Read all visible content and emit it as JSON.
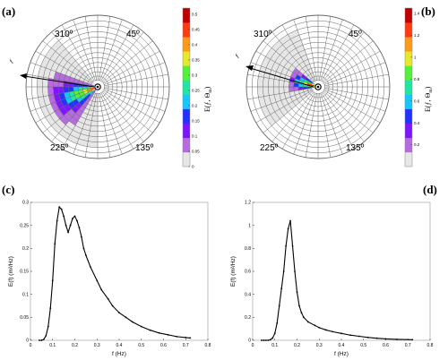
{
  "panel_labels": {
    "a": "(a)",
    "b": "(b)",
    "c": "(c)",
    "d": "(d)"
  },
  "colors": {
    "line": "#000000",
    "grid": "#555555",
    "colormap": [
      "#e6e6e6",
      "#b66be0",
      "#7d16ff",
      "#2233ff",
      "#12c8ff",
      "#1fe6a0",
      "#55f03a",
      "#e8e82a",
      "#ff9a18",
      "#ff3a10",
      "#c00000"
    ]
  },
  "chart_data": [
    {
      "type": "heatmap",
      "id": "a",
      "direction_labels": [
        "310º",
        "45º",
        "225º",
        "135º"
      ],
      "heading_label": "ƒ",
      "colorbar": {
        "title": "E(ƒ, Θ",
        "title_sub": "m",
        "title_close": ")",
        "ticks": [
          "0",
          "0.05",
          "0.1",
          "0.15",
          "0.2",
          "0.25",
          "0.3",
          "0.35",
          "0.4",
          "0.45",
          "0.5"
        ],
        "range": [
          0,
          0.52
        ]
      }
    },
    {
      "type": "heatmap",
      "id": "b",
      "direction_labels": [
        "310º",
        "45º",
        "225º",
        "135º"
      ],
      "heading_label": "ƒ",
      "colorbar": {
        "title": "E(ƒ, Θ",
        "title_sub": "m",
        "title_close": ")",
        "ticks": [
          "0.2",
          "0.4",
          "0.6",
          "0.8",
          "1",
          "1.2",
          "1.4"
        ],
        "range": [
          0,
          1.45
        ]
      }
    },
    {
      "type": "line",
      "id": "c",
      "xlabel": "f (Hz)",
      "ylabel": "E(f) (m²/Hz)",
      "xlim": [
        0,
        0.8
      ],
      "ylim": [
        0,
        0.3
      ],
      "xticks": [
        "0",
        "0.1",
        "0.2",
        "0.3",
        "0.4",
        "0.5",
        "0.6",
        "0.7",
        "0.8"
      ],
      "yticks": [
        "0",
        "0.05",
        "0.1",
        "0.15",
        "0.2",
        "0.25",
        "0.3"
      ],
      "x": [
        0.04,
        0.05,
        0.06,
        0.07,
        0.08,
        0.09,
        0.1,
        0.11,
        0.12,
        0.13,
        0.14,
        0.15,
        0.16,
        0.17,
        0.18,
        0.19,
        0.2,
        0.21,
        0.22,
        0.23,
        0.24,
        0.25,
        0.27,
        0.3,
        0.32,
        0.35,
        0.37,
        0.4,
        0.43,
        0.46,
        0.5,
        0.54,
        0.58,
        0.62,
        0.66,
        0.7,
        0.72
      ],
      "y": [
        0.0,
        0.0,
        0.002,
        0.01,
        0.03,
        0.07,
        0.13,
        0.21,
        0.26,
        0.29,
        0.285,
        0.27,
        0.25,
        0.235,
        0.25,
        0.265,
        0.27,
        0.26,
        0.245,
        0.225,
        0.2,
        0.185,
        0.16,
        0.13,
        0.11,
        0.09,
        0.075,
        0.06,
        0.05,
        0.04,
        0.03,
        0.022,
        0.016,
        0.012,
        0.008,
        0.006,
        0.005
      ]
    },
    {
      "type": "line",
      "id": "d",
      "xlabel": "f (Hz)",
      "ylabel": "E(f) (m²/Hz)",
      "xlim": [
        0,
        0.8
      ],
      "ylim": [
        0,
        1.2
      ],
      "xticks": [
        "0",
        "0.1",
        "0.2",
        "0.3",
        "0.4",
        "0.5",
        "0.6",
        "0.7",
        "0.8"
      ],
      "yticks": [
        "0",
        "0.2",
        "0.4",
        "0.6",
        "0.8",
        "1",
        "1.2"
      ],
      "x": [
        0.04,
        0.05,
        0.06,
        0.07,
        0.08,
        0.09,
        0.1,
        0.11,
        0.12,
        0.13,
        0.14,
        0.15,
        0.16,
        0.17,
        0.18,
        0.19,
        0.2,
        0.21,
        0.22,
        0.23,
        0.25,
        0.28,
        0.3,
        0.33,
        0.36,
        0.4,
        0.44,
        0.48,
        0.52,
        0.56,
        0.6,
        0.65,
        0.72
      ],
      "y": [
        0.0,
        0.0,
        0.0,
        0.0,
        0.005,
        0.02,
        0.06,
        0.15,
        0.3,
        0.45,
        0.6,
        0.82,
        0.97,
        1.04,
        0.82,
        0.6,
        0.42,
        0.3,
        0.24,
        0.2,
        0.16,
        0.13,
        0.11,
        0.09,
        0.075,
        0.06,
        0.045,
        0.035,
        0.025,
        0.018,
        0.012,
        0.008,
        0.005
      ]
    }
  ]
}
